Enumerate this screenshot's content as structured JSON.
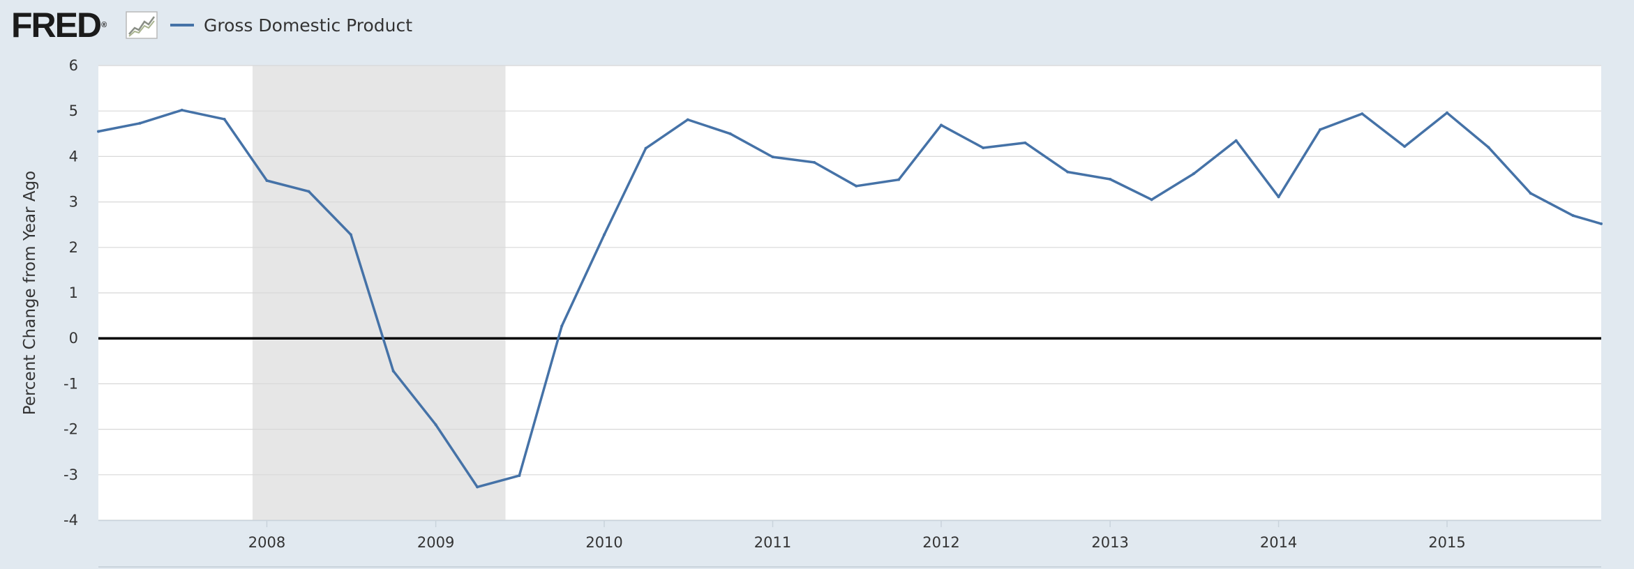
{
  "header": {
    "logo_text": "FRED",
    "logo_reg": "®",
    "logo_icon": "chart-line-icon",
    "legend_label": "Gross Domestic Product"
  },
  "colors": {
    "series": "#4572a7",
    "recession": "#e6e6e6",
    "plot_background": "#ffffff",
    "page_background": "#e1e9f0",
    "gridline": "#d8d8d8",
    "zero_line": "#000000"
  },
  "chart_data": {
    "type": "line",
    "title": "",
    "xlabel": "",
    "ylabel": "Percent Change from Year Ago",
    "ylim": [
      -4,
      6
    ],
    "xlim": [
      "2007-01-01",
      "2015-12-01"
    ],
    "yticks": [
      6,
      5,
      4,
      3,
      2,
      1,
      0,
      -1,
      -2,
      -3,
      -4
    ],
    "xticks": [
      {
        "label": "2008",
        "date": "2008-01-01"
      },
      {
        "label": "2009",
        "date": "2009-01-01"
      },
      {
        "label": "2010",
        "date": "2010-01-01"
      },
      {
        "label": "2011",
        "date": "2011-01-01"
      },
      {
        "label": "2012",
        "date": "2012-01-01"
      },
      {
        "label": "2013",
        "date": "2013-01-01"
      },
      {
        "label": "2014",
        "date": "2014-01-01"
      },
      {
        "label": "2015",
        "date": "2015-01-01"
      }
    ],
    "grid": true,
    "recession": {
      "start": "2007-12-01",
      "end": "2009-06-01"
    },
    "series": [
      {
        "name": "Gross Domestic Product",
        "points": [
          {
            "x": "2007-01-01",
            "y": 4.55
          },
          {
            "x": "2007-04-01",
            "y": 4.73
          },
          {
            "x": "2007-07-01",
            "y": 5.02
          },
          {
            "x": "2007-10-01",
            "y": 4.82
          },
          {
            "x": "2008-01-01",
            "y": 3.47
          },
          {
            "x": "2008-04-01",
            "y": 3.23
          },
          {
            "x": "2008-07-01",
            "y": 2.28
          },
          {
            "x": "2008-10-01",
            "y": -0.72
          },
          {
            "x": "2009-01-01",
            "y": -1.9
          },
          {
            "x": "2009-04-01",
            "y": -3.27
          },
          {
            "x": "2009-07-01",
            "y": -3.02
          },
          {
            "x": "2009-10-01",
            "y": 0.27
          },
          {
            "x": "2010-01-01",
            "y": 2.28
          },
          {
            "x": "2010-04-01",
            "y": 4.18
          },
          {
            "x": "2010-07-01",
            "y": 4.81
          },
          {
            "x": "2010-10-01",
            "y": 4.5
          },
          {
            "x": "2011-01-01",
            "y": 3.99
          },
          {
            "x": "2011-04-01",
            "y": 3.87
          },
          {
            "x": "2011-07-01",
            "y": 3.35
          },
          {
            "x": "2011-10-01",
            "y": 3.49
          },
          {
            "x": "2012-01-01",
            "y": 4.69
          },
          {
            "x": "2012-04-01",
            "y": 4.19
          },
          {
            "x": "2012-07-01",
            "y": 4.3
          },
          {
            "x": "2012-10-01",
            "y": 3.66
          },
          {
            "x": "2013-01-01",
            "y": 3.5
          },
          {
            "x": "2013-04-01",
            "y": 3.05
          },
          {
            "x": "2013-07-01",
            "y": 3.62
          },
          {
            "x": "2013-10-01",
            "y": 4.35
          },
          {
            "x": "2014-01-01",
            "y": 3.11
          },
          {
            "x": "2014-04-01",
            "y": 4.59
          },
          {
            "x": "2014-07-01",
            "y": 4.94
          },
          {
            "x": "2014-10-01",
            "y": 4.22
          },
          {
            "x": "2015-01-01",
            "y": 4.96
          },
          {
            "x": "2015-04-01",
            "y": 4.2
          },
          {
            "x": "2015-07-01",
            "y": 3.19
          },
          {
            "x": "2015-10-01",
            "y": 2.7
          },
          {
            "x": "2015-12-01",
            "y": 2.52
          }
        ]
      }
    ]
  }
}
